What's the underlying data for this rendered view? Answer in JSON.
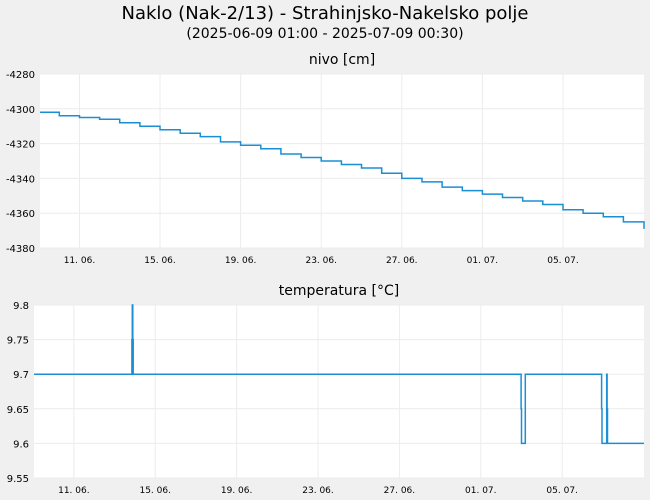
{
  "title": "Naklo (Nak-2/13) - Strahinjsko-Nakelsko polje",
  "subtitle": "(2025-06-09 01:00 - 2025-07-09 00:30)",
  "chart_data": [
    {
      "type": "line",
      "title": "nivo [cm]",
      "color": "#1a8fd6",
      "ylim": [
        -4380,
        -4280
      ],
      "yticks": [
        -4280,
        -4300,
        -4320,
        -4340,
        -4360,
        -4380
      ],
      "xlim": [
        "2025-06-09 01:00",
        "2025-07-09 00:30"
      ],
      "xticks": [
        "11. 06.",
        "15. 06.",
        "19. 06.",
        "23. 06.",
        "27. 06.",
        "01. 07.",
        "05. 07."
      ],
      "grid": true,
      "series": [
        {
          "x": [
            "2025-06-09 01:00",
            "2025-06-10 00:00",
            "2025-06-11 00:00",
            "2025-06-12 00:00",
            "2025-06-13 00:00",
            "2025-06-14 00:00",
            "2025-06-15 00:00",
            "2025-06-16 00:00",
            "2025-06-17 00:00",
            "2025-06-18 00:00",
            "2025-06-19 00:00",
            "2025-06-20 00:00",
            "2025-06-21 00:00",
            "2025-06-22 00:00",
            "2025-06-23 00:00",
            "2025-06-24 00:00",
            "2025-06-25 00:00",
            "2025-06-26 00:00",
            "2025-06-27 00:00",
            "2025-06-28 00:00",
            "2025-06-29 00:00",
            "2025-06-30 00:00",
            "2025-07-01 00:00",
            "2025-07-02 00:00",
            "2025-07-03 00:00",
            "2025-07-04 00:00",
            "2025-07-05 00:00",
            "2025-07-06 00:00",
            "2025-07-07 00:00",
            "2025-07-08 00:00",
            "2025-07-09 00:30"
          ],
          "y": [
            -4302,
            -4304,
            -4305,
            -4306,
            -4308,
            -4310,
            -4312,
            -4314,
            -4316,
            -4319,
            -4321,
            -4323,
            -4326,
            -4328,
            -4330,
            -4332,
            -4334,
            -4337,
            -4340,
            -4342,
            -4345,
            -4347,
            -4349,
            -4351,
            -4353,
            -4355,
            -4358,
            -4360,
            -4362,
            -4365,
            -4369
          ]
        }
      ]
    },
    {
      "type": "line",
      "title": "temperatura [°C]",
      "color": "#1a8fd6",
      "ylim": [
        9.55,
        9.8
      ],
      "yticks": [
        9.8,
        9.75,
        9.7,
        9.65,
        9.6,
        9.55
      ],
      "xlim": [
        "2025-06-09 01:00",
        "2025-07-09 00:30"
      ],
      "xticks": [
        "11. 06.",
        "15. 06.",
        "19. 06.",
        "23. 06.",
        "27. 06.",
        "01. 07.",
        "05. 07."
      ],
      "grid": true,
      "series": [
        {
          "x": [
            "2025-06-09 01:00",
            "2025-06-13 20:00",
            "2025-06-13 20:30",
            "2025-06-13 21:00",
            "2025-06-13 21:30",
            "2025-06-13 22:00",
            "2025-07-02 23:00",
            "2025-07-02 23:30",
            "2025-07-03 00:00",
            "2025-07-03 04:00",
            "2025-07-03 04:30",
            "2025-07-06 22:00",
            "2025-07-06 22:30",
            "2025-07-06 23:00",
            "2025-07-07 04:00",
            "2025-07-07 04:30",
            "2025-07-07 05:00",
            "2025-07-07 05:30",
            "2025-07-07 06:00",
            "2025-07-09 00:30"
          ],
          "y": [
            9.7,
            9.7,
            9.75,
            9.8,
            9.75,
            9.7,
            9.7,
            9.65,
            9.6,
            9.6,
            9.7,
            9.7,
            9.65,
            9.6,
            9.6,
            9.7,
            9.65,
            9.6,
            9.6,
            9.6
          ]
        }
      ]
    }
  ]
}
